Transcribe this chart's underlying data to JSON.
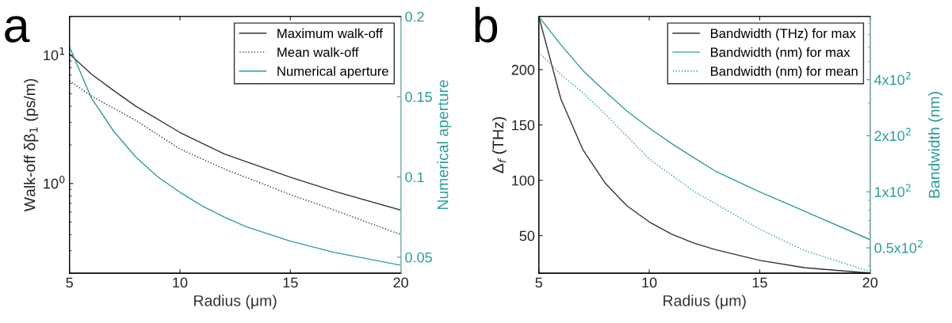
{
  "chart_data": [
    {
      "type": "line",
      "annotations": [
        "a"
      ],
      "xlabel": "Radius (μm)",
      "ylabel": "Walk-off δβ$_{1}$ (ps/m)",
      "y2label": "Numerical aperture",
      "log": "y",
      "legend": "top right",
      "grid": false,
      "xlim": [
        5,
        20
      ],
      "xticks": [
        5,
        10,
        15,
        20
      ],
      "ylim": [
        0.2,
        20
      ],
      "yticks": [
        {
          "value": 1,
          "label": "10$^{0}$"
        },
        {
          "value": 10,
          "label": "10$^{1}$"
        }
      ],
      "y2lim": [
        0.04,
        0.2
      ],
      "y2ticks": [
        0.05,
        0.1,
        0.15,
        0.2
      ],
      "series": [
        {
          "name": "Maximum walk-off",
          "color": "#333333",
          "line_style": "solid",
          "x": [
            5,
            6,
            7,
            8,
            10,
            12,
            15,
            17,
            20
          ],
          "values": [
            10.2,
            7.1,
            5.3,
            4.0,
            2.5,
            1.7,
            1.12,
            0.87,
            0.62
          ]
        },
        {
          "name": "Mean walk-off",
          "color": "#333333",
          "line_style": "dotted",
          "x": [
            5,
            6,
            8,
            10,
            12,
            15,
            17,
            20
          ],
          "values": [
            6.3,
            4.8,
            3.1,
            1.86,
            1.3,
            0.82,
            0.62,
            0.4
          ]
        },
        {
          "name": "Numerical aperture",
          "color": "#2a9d9d",
          "line_style": "solid",
          "axis": "y2",
          "x": [
            5,
            6,
            7,
            8,
            9,
            10,
            11,
            12,
            13,
            15,
            17,
            20
          ],
          "values": [
            0.181,
            0.149,
            0.1285,
            0.1125,
            0.1,
            0.0905,
            0.082,
            0.075,
            0.069,
            0.06,
            0.053,
            0.045
          ]
        }
      ]
    },
    {
      "type": "line",
      "annotations": [
        "b"
      ],
      "xlabel": "Radius (μm)",
      "ylabel": "Δ$_{f}$ (THz)",
      "y2label": "Bandwidth (nm)",
      "log": "y2",
      "legend": "top right",
      "grid": false,
      "xlim": [
        5,
        20
      ],
      "xticks": [
        5,
        10,
        15,
        20
      ],
      "ylim": [
        16,
        248
      ],
      "yticks": [
        50,
        100,
        150,
        200
      ],
      "y2lim": [
        36.5,
        875
      ],
      "y2ticks": [
        {
          "value": 50,
          "label": "0.5x10$^{2}$"
        },
        {
          "value": 100,
          "label": "1x10$^{2}$"
        },
        {
          "value": 200,
          "label": "2x10$^{2}$"
        },
        {
          "value": 400,
          "label": "4x10$^{2}$"
        }
      ],
      "series": [
        {
          "name": "Bandwidth (THz) for max",
          "color": "#333333",
          "line_style": "solid",
          "x": [
            5,
            6,
            7,
            8,
            9,
            10,
            11,
            12,
            13,
            15,
            17,
            20
          ],
          "values": [
            248,
            173.3,
            127.4,
            97.5,
            76.7,
            62.4,
            51.4,
            43.4,
            37.3,
            27.7,
            21.1,
            16.1
          ]
        },
        {
          "name": "Bandwidth (nm) for max",
          "color": "#2a9d9d",
          "line_style": "solid",
          "axis": "y2",
          "x": [
            5,
            6,
            7,
            8,
            9,
            10,
            11,
            12,
            13,
            15,
            17,
            20
          ],
          "values": [
            875,
            616,
            448,
            346,
            271,
            220,
            182,
            153,
            129,
            100,
            79,
            55.3
          ]
        },
        {
          "name": "Bandwidth (nm) for mean",
          "color": "#2a9d9d",
          "line_style": "dotted",
          "axis": "y2",
          "x": [
            5,
            6,
            7,
            8,
            10,
            12,
            15,
            17,
            20
          ],
          "values": [
            562,
            426,
            340,
            262,
            150,
            101,
            63,
            48.5,
            37.2
          ]
        }
      ]
    }
  ]
}
